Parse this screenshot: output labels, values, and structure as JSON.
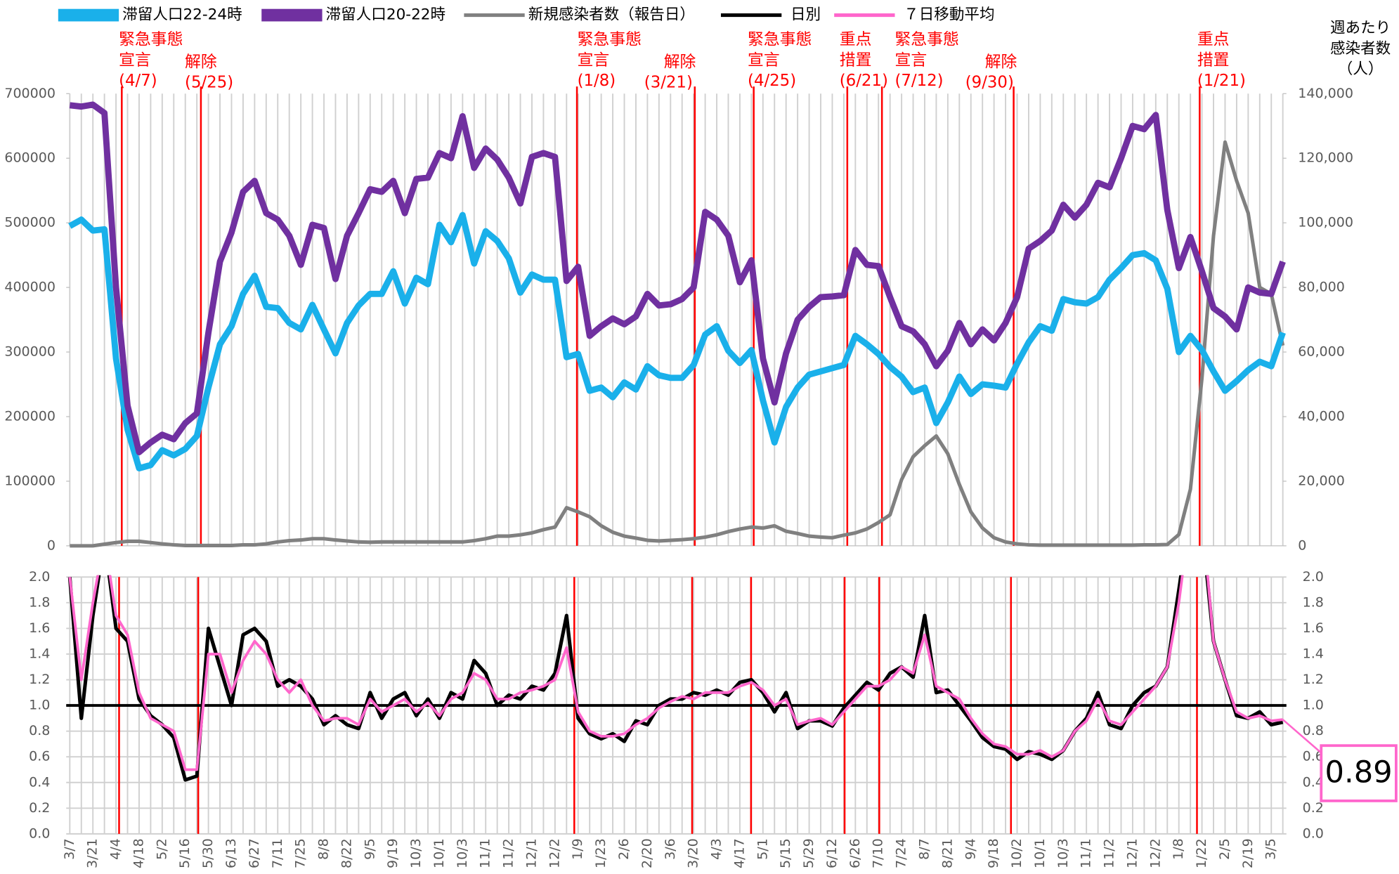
{
  "chart_data": [
    {
      "type": "line",
      "ylim": [
        0,
        700000
      ],
      "yticks": [
        0,
        100000,
        200000,
        300000,
        400000,
        500000,
        600000,
        700000
      ],
      "y2lim": [
        0,
        140000
      ],
      "y2ticks": [
        {
          "value": 0,
          "label": "0"
        },
        {
          "value": 20000,
          "label": "20,000"
        },
        {
          "value": 40000,
          "label": "40,000"
        },
        {
          "value": 60000,
          "label": "60,000"
        },
        {
          "value": 80000,
          "label": "80,000"
        },
        {
          "value": 100000,
          "label": "100,000"
        },
        {
          "value": 120000,
          "label": "120,000"
        },
        {
          "value": 140000,
          "label": "140,000"
        }
      ],
      "y2label": [
        "週あたり",
        "感染者数",
        "（人）"
      ],
      "annotations": [
        {
          "lines": [
            "緊急事態",
            "宣言",
            "(4/7)"
          ]
        },
        {
          "lines": [
            "解除",
            "(5/25)"
          ]
        },
        {
          "lines": [
            "緊急事態",
            "宣言",
            "(1/8)"
          ]
        },
        {
          "lines": [
            "解除",
            "(3/21)"
          ]
        },
        {
          "lines": [
            "緊急事態",
            "宣言",
            "(4/25)"
          ]
        },
        {
          "lines": [
            "重点",
            "措置",
            "(6/21)"
          ]
        },
        {
          "lines": [
            "緊急事態",
            "宣言",
            "(7/12)"
          ]
        },
        {
          "lines": [
            "解除",
            "(9/30)"
          ]
        },
        {
          "lines": [
            "重点",
            "措置",
            "(1/21)"
          ]
        }
      ],
      "series": [
        {
          "name": "滞留人口22-24時",
          "color": "#1ab0ea",
          "values": [
            495000,
            505000,
            488000,
            490000,
            290000,
            180000,
            120000,
            125000,
            148000,
            140000,
            150000,
            170000,
            245000,
            312000,
            340000,
            390000,
            418000,
            370000,
            368000,
            345000,
            335000,
            373000,
            335000,
            298000,
            345000,
            372000,
            390000,
            390000,
            425000,
            375000,
            415000,
            405000,
            497000,
            470000,
            512000,
            437000,
            487000,
            472000,
            445000,
            392000,
            420000,
            412000,
            412000,
            292000,
            297000,
            240000,
            245000,
            230000,
            253000,
            242000,
            278000,
            264000,
            260000,
            260000,
            280000,
            327000,
            340000,
            302000,
            283000,
            303000,
            225000,
            160000,
            215000,
            245000,
            265000,
            270000,
            275000,
            280000,
            325000,
            312000,
            297000,
            277000,
            262000,
            238000,
            245000,
            190000,
            222000,
            262000,
            235000,
            250000,
            248000,
            245000,
            282000,
            315000,
            340000,
            333000,
            382000,
            377000,
            375000,
            385000,
            412000,
            430000,
            450000,
            453000,
            442000,
            398000,
            300000,
            325000,
            303000,
            270000,
            240000,
            255000,
            272000,
            285000,
            278000,
            330000
          ]
        },
        {
          "name": "滞留人口20-22時",
          "color": "#7030a0",
          "values": [
            682000,
            680000,
            683000,
            670000,
            400000,
            217000,
            145000,
            160000,
            172000,
            165000,
            190000,
            205000,
            330000,
            440000,
            485000,
            548000,
            565000,
            515000,
            505000,
            480000,
            435000,
            497000,
            492000,
            413000,
            480000,
            515000,
            552000,
            548000,
            565000,
            515000,
            568000,
            570000,
            608000,
            600000,
            665000,
            585000,
            615000,
            598000,
            570000,
            530000,
            602000,
            608000,
            602000,
            410000,
            432000,
            325000,
            340000,
            352000,
            343000,
            355000,
            390000,
            372000,
            374000,
            382000,
            400000,
            517000,
            505000,
            480000,
            408000,
            442000,
            290000,
            222000,
            298000,
            350000,
            370000,
            385000,
            386000,
            388000,
            458000,
            435000,
            433000,
            385000,
            340000,
            332000,
            312000,
            278000,
            302000,
            345000,
            312000,
            335000,
            318000,
            345000,
            385000,
            460000,
            472000,
            488000,
            528000,
            508000,
            528000,
            562000,
            555000,
            600000,
            650000,
            645000,
            667000,
            520000,
            430000,
            478000,
            425000,
            368000,
            355000,
            335000,
            400000,
            392000,
            390000,
            440000
          ]
        },
        {
          "name": "新規感染者数（報告日）",
          "color": "#808080",
          "axis": "y2",
          "values": [
            0,
            0,
            0,
            500,
            1000,
            1400,
            1400,
            1000,
            600,
            300,
            100,
            100,
            100,
            100,
            100,
            300,
            300,
            600,
            1200,
            1600,
            1800,
            2200,
            2200,
            1800,
            1500,
            1200,
            1100,
            1200,
            1200,
            1200,
            1200,
            1200,
            1200,
            1200,
            1200,
            1600,
            2200,
            3000,
            3000,
            3400,
            4000,
            5000,
            5800,
            11800,
            10500,
            9000,
            6200,
            4200,
            3000,
            2400,
            1700,
            1500,
            1700,
            1900,
            2200,
            2700,
            3400,
            4400,
            5200,
            5800,
            5500,
            6200,
            4500,
            3800,
            3000,
            2700,
            2500,
            3300,
            4000,
            5200,
            7200,
            9600,
            20500,
            27600,
            31000,
            34000,
            28500,
            19000,
            10500,
            5500,
            2500,
            1200,
            600,
            300,
            200,
            200,
            200,
            200,
            200,
            200,
            200,
            200,
            200,
            300,
            300,
            400,
            3500,
            17500,
            52000,
            96000,
            125000,
            113000,
            103000,
            80000,
            78000,
            62000
          ]
        }
      ]
    },
    {
      "type": "line",
      "categories": [
        "3/7",
        null,
        "3/21",
        null,
        "4/4",
        null,
        "4/18",
        null,
        "5/2",
        null,
        "5/16",
        null,
        "5/30",
        null,
        "6/13",
        null,
        "6/27",
        null,
        "7/11",
        null,
        "7/25",
        null,
        "8/8",
        null,
        "8/22",
        null,
        "9/5",
        null,
        "9/19",
        null,
        "10/3",
        null,
        "10/1",
        null,
        "10/3",
        null,
        "11/1",
        null,
        "11/2",
        null,
        "12/1",
        null,
        "12/2",
        null,
        "1/9",
        null,
        "1/23",
        null,
        "2/6",
        null,
        "2/20",
        null,
        "3/6",
        null,
        "3/20",
        null,
        "4/3",
        null,
        "4/17",
        null,
        "5/1",
        null,
        "5/15",
        null,
        "5/29",
        null,
        "6/12",
        null,
        "6/26",
        null,
        "7/10",
        null,
        "7/24",
        null,
        "8/7",
        null,
        "8/21",
        null,
        "9/4",
        null,
        "9/18",
        null,
        "10/2",
        null,
        "10/1",
        null,
        "10/3",
        null,
        "11/1",
        null,
        "11/2",
        null,
        "12/1",
        null,
        "12/2",
        null,
        "1/8",
        null,
        "1/22",
        null,
        "2/5",
        null,
        "2/19",
        null,
        "3/5",
        null
      ],
      "ylim": [
        0,
        2
      ],
      "yticks": [
        {
          "value": 0,
          "label": "0.0"
        },
        0.2,
        0.4,
        0.6,
        0.8,
        {
          "value": 1,
          "label": "1.0"
        },
        1.2,
        1.4,
        1.6,
        1.8,
        {
          "value": 2,
          "label": "2.0"
        }
      ],
      "hline": 1,
      "callout": "0.89",
      "series": [
        {
          "name": "日別",
          "color": "#000000",
          "values": [
            2.0,
            0.9,
            1.7,
            2.3,
            1.6,
            1.5,
            1.05,
            0.92,
            0.85,
            0.75,
            0.42,
            0.45,
            1.6,
            1.3,
            1.0,
            1.55,
            1.6,
            1.5,
            1.15,
            1.2,
            1.15,
            1.05,
            0.85,
            0.92,
            0.85,
            0.82,
            1.1,
            0.9,
            1.05,
            1.1,
            0.92,
            1.05,
            0.9,
            1.1,
            1.05,
            1.35,
            1.25,
            1.0,
            1.08,
            1.05,
            1.15,
            1.12,
            1.25,
            1.7,
            0.9,
            0.78,
            0.74,
            0.78,
            0.72,
            0.88,
            0.85,
            1.0,
            1.05,
            1.05,
            1.1,
            1.08,
            1.12,
            1.08,
            1.18,
            1.2,
            1.1,
            0.95,
            1.1,
            0.82,
            0.88,
            0.88,
            0.84,
            0.98,
            1.08,
            1.18,
            1.12,
            1.25,
            1.3,
            1.22,
            1.7,
            1.1,
            1.12,
            1.0,
            0.88,
            0.75,
            0.68,
            0.66,
            0.58,
            0.64,
            0.62,
            0.58,
            0.65,
            0.8,
            0.9,
            1.1,
            0.85,
            0.82,
            1.0,
            1.1,
            1.15,
            1.3,
            1.9,
            2.5,
            2.4,
            1.5,
            1.2,
            0.92,
            0.9,
            0.95,
            0.85,
            0.87
          ]
        },
        {
          "name": "７日移動平均",
          "color": "#ff66cc",
          "values": [
            2.0,
            1.2,
            1.8,
            2.3,
            1.7,
            1.55,
            1.1,
            0.9,
            0.85,
            0.8,
            0.5,
            0.5,
            1.4,
            1.4,
            1.1,
            1.35,
            1.5,
            1.4,
            1.2,
            1.1,
            1.2,
            1.0,
            0.88,
            0.9,
            0.9,
            0.85,
            1.05,
            0.95,
            1.0,
            1.05,
            0.95,
            1.02,
            0.92,
            1.05,
            1.1,
            1.25,
            1.2,
            1.05,
            1.05,
            1.1,
            1.12,
            1.15,
            1.2,
            1.45,
            0.95,
            0.8,
            0.76,
            0.76,
            0.78,
            0.85,
            0.9,
            0.98,
            1.03,
            1.07,
            1.05,
            1.1,
            1.1,
            1.1,
            1.15,
            1.18,
            1.12,
            1.0,
            1.05,
            0.85,
            0.88,
            0.9,
            0.85,
            0.95,
            1.05,
            1.15,
            1.15,
            1.2,
            1.3,
            1.25,
            1.55,
            1.15,
            1.1,
            1.05,
            0.9,
            0.78,
            0.7,
            0.68,
            0.62,
            0.62,
            0.65,
            0.6,
            0.65,
            0.8,
            0.88,
            1.05,
            0.88,
            0.85,
            0.95,
            1.05,
            1.15,
            1.3,
            1.8,
            2.5,
            2.5,
            1.5,
            1.2,
            0.95,
            0.9,
            0.92,
            0.88,
            0.89
          ]
        }
      ]
    }
  ]
}
